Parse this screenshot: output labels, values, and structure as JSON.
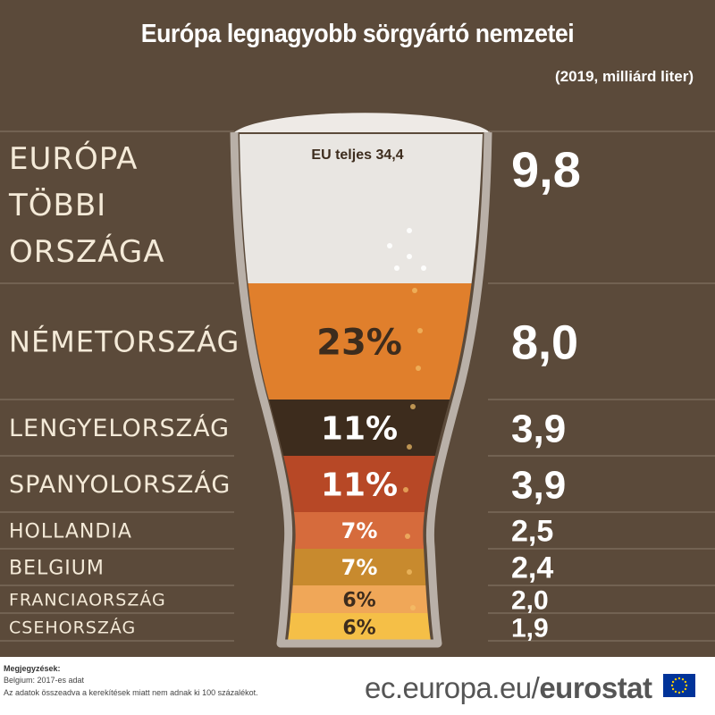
{
  "title": "Európa legnagyobb sörgyártó nemzetei",
  "subtitle": "(2019, milliárd liter)",
  "eu_total_label": "EU teljes 34,4",
  "chart_data": {
    "type": "bar",
    "unit": "milliárd liter",
    "categories": [
      "EURÓPA TÖBBI ORSZÁGA",
      "NÉMETORSZÁG",
      "LENGYELORSZÁG",
      "SPANYOLORSZÁG",
      "HOLLANDIA",
      "BELGIUM",
      "FRANCIAORSZÁG",
      "CSEHORSZÁG"
    ],
    "category_lines": [
      [
        "EURÓPA",
        "TÖBBI",
        "ORSZÁGA"
      ],
      [
        "NÉMETORSZÁG"
      ],
      [
        "LENGYELORSZÁG"
      ],
      [
        "SPANYOLORSZÁG"
      ],
      [
        "HOLLANDIA"
      ],
      [
        "BELGIUM"
      ],
      [
        "FRANCIAORSZÁG"
      ],
      [
        "CSEHORSZÁG"
      ]
    ],
    "values": [
      9.8,
      8.0,
      3.9,
      3.9,
      2.5,
      2.4,
      2.0,
      1.9
    ],
    "value_labels": [
      "9,8",
      "8,0",
      "3,9",
      "3,9",
      "2,5",
      "2,4",
      "2,0",
      "1,9"
    ],
    "share_labels": [
      "",
      "23%",
      "11%",
      "11%",
      "7%",
      "7%",
      "6%",
      "6%"
    ],
    "colors": [
      "#e9e6e2",
      "#e07f2c",
      "#3d2c1d",
      "#b74826",
      "#d66b3c",
      "#c88a2e",
      "#f0a758",
      "#f5bf47"
    ]
  },
  "footer": {
    "notes_title": "Megjegyzések:",
    "notes": [
      "Belgium: 2017-es adat",
      "Az adatok összeadva a kerekítések miatt nem adnak ki 100 százalékot."
    ],
    "source_prefix": "ec.europa.eu/",
    "source_brand": "eurostat"
  }
}
